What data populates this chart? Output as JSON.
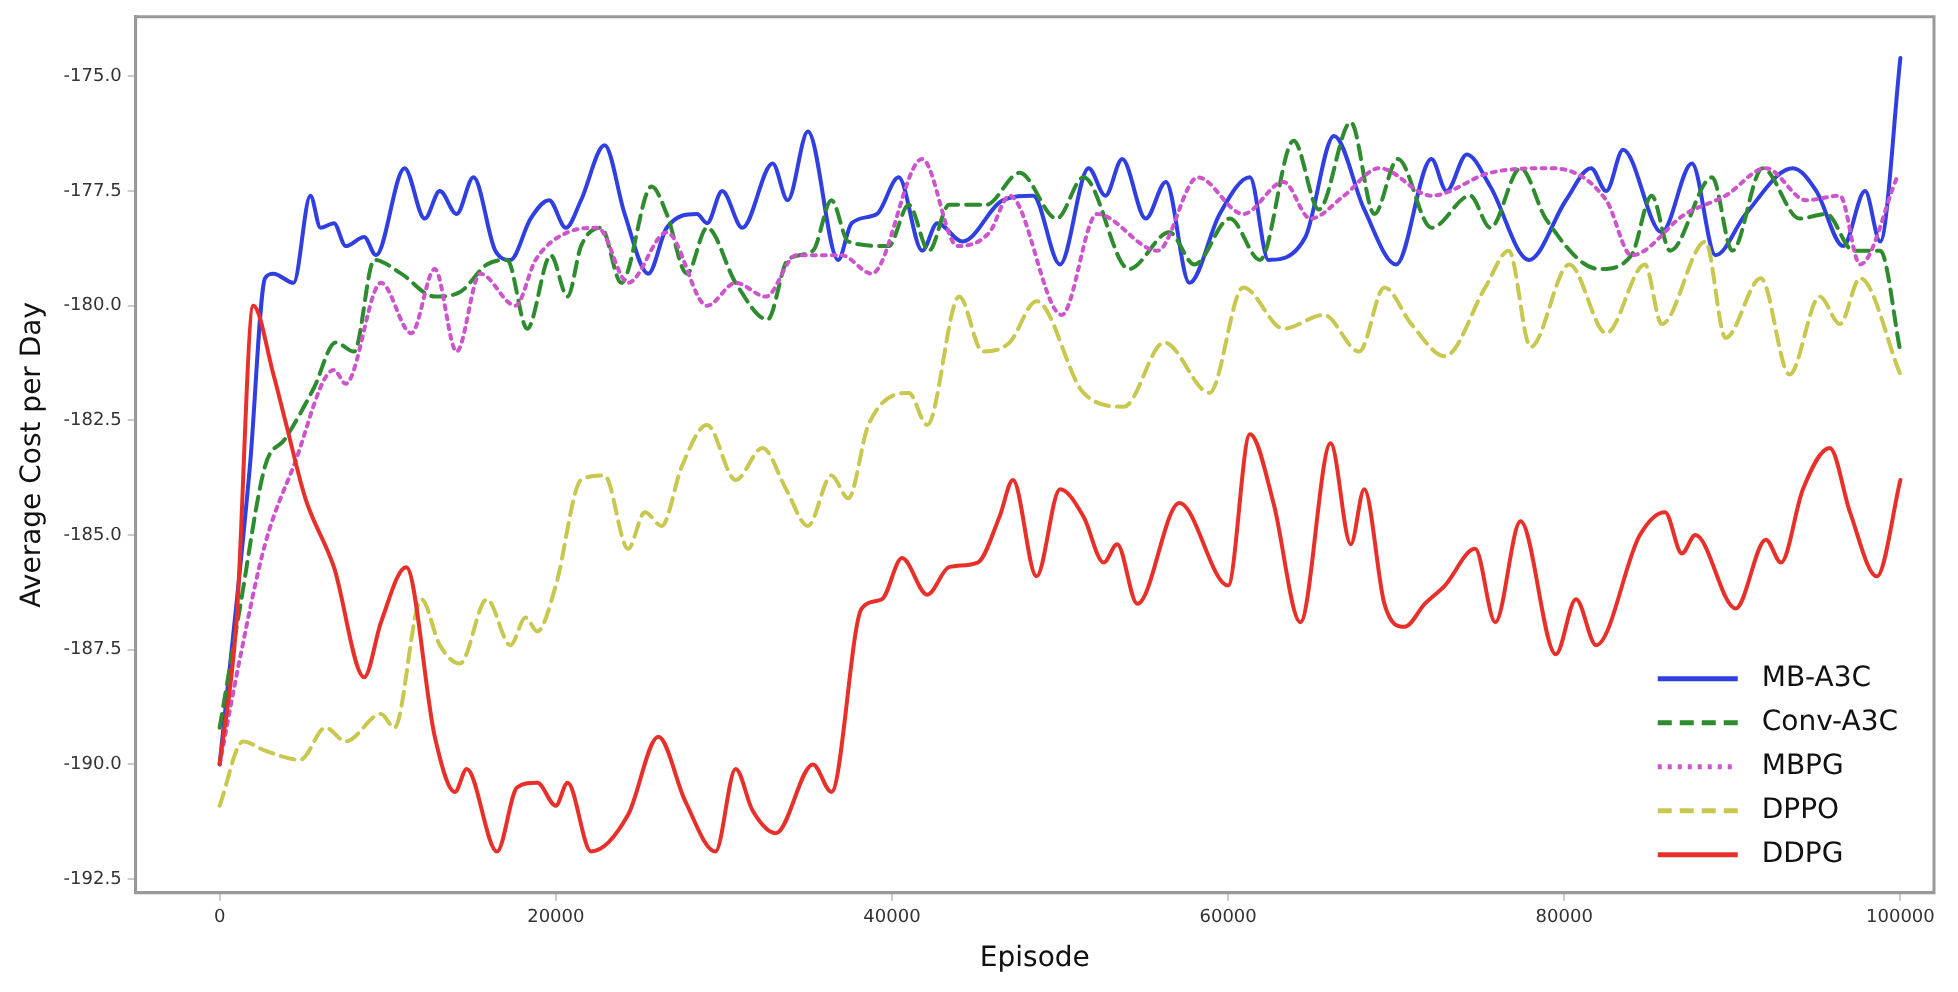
{
  "chart_data": {
    "type": "line",
    "xlabel": "Episode",
    "ylabel": "Average Cost per Day",
    "xlim": [
      -5000,
      102000
    ],
    "ylim": [
      -192.8,
      -173.7
    ],
    "xticks": [
      0,
      20000,
      40000,
      60000,
      80000,
      100000
    ],
    "yticks": [
      {
        "value": -192.5,
        "label": "-192.5"
      },
      {
        "value": -190,
        "label": "-190.0"
      },
      {
        "value": -187.5,
        "label": "-187.5"
      },
      {
        "value": -185,
        "label": "-185.0"
      },
      {
        "value": -182.5,
        "label": "-182.5"
      },
      {
        "value": -180,
        "label": "-180.0"
      },
      {
        "value": -177.5,
        "label": "-177.5"
      },
      {
        "value": -175,
        "label": "-175.0"
      }
    ],
    "grid": false,
    "legend": "bottom right",
    "marker": "none",
    "series": [
      {
        "name": "MB-A3C",
        "color": "#2f3fe0",
        "line_style": "solid",
        "x": [
          0,
          1800,
          2700,
          3200,
          4400,
          5400,
          6000,
          6800,
          7500,
          8600,
          9300,
          11000,
          12200,
          13100,
          14100,
          15100,
          16400,
          17300,
          18500,
          19600,
          20600,
          21500,
          22900,
          24100,
          25500,
          26600,
          28400,
          29000,
          29900,
          31100,
          32900,
          33800,
          35000,
          36800,
          37600,
          39100,
          40400,
          41800,
          42700,
          44200,
          46600,
          48400,
          50000,
          51700,
          52700,
          53700,
          55100,
          56300,
          57700,
          59500,
          61300,
          62400,
          64600,
          66300,
          68100,
          70000,
          72100,
          73000,
          74200,
          75600,
          77900,
          80100,
          81600,
          82500,
          83500,
          85800,
          87600,
          89000,
          90800,
          93600,
          95000,
          96600,
          97900,
          98800,
          100000
        ],
        "values": [
          -190,
          -183.5,
          -179.4,
          -179.3,
          -179.5,
          -177.6,
          -178.3,
          -178.2,
          -178.7,
          -178.5,
          -178.9,
          -177.0,
          -178.1,
          -177.5,
          -178.0,
          -177.2,
          -178.8,
          -179.0,
          -178.1,
          -177.7,
          -178.3,
          -177.7,
          -176.5,
          -178.0,
          -179.3,
          -178.3,
          -178.0,
          -178.2,
          -177.5,
          -178.3,
          -176.9,
          -177.7,
          -176.2,
          -179.0,
          -178.2,
          -178.0,
          -177.2,
          -178.8,
          -178.2,
          -178.6,
          -177.7,
          -177.6,
          -179.1,
          -177.0,
          -177.6,
          -176.8,
          -178.1,
          -177.3,
          -179.5,
          -178.0,
          -177.2,
          -179.0,
          -178.5,
          -176.3,
          -177.9,
          -179.1,
          -176.8,
          -177.5,
          -176.7,
          -177.4,
          -179.0,
          -177.7,
          -177.0,
          -177.5,
          -176.6,
          -178.4,
          -176.9,
          -178.9,
          -178.0,
          -177.0,
          -177.5,
          -178.7,
          -177.5,
          -178.6,
          -174.6
        ]
      },
      {
        "name": "Conv-A3C",
        "color": "#2e8b2e",
        "line_style": "dashed",
        "x": [
          0,
          1200,
          2700,
          3900,
          5600,
          6900,
          8000,
          9200,
          10800,
          12800,
          14300,
          15900,
          17100,
          18300,
          19700,
          20700,
          21500,
          22700,
          23900,
          25700,
          26600,
          27800,
          29000,
          30700,
          32600,
          33800,
          35300,
          36400,
          37400,
          39800,
          41000,
          42200,
          43400,
          45600,
          47600,
          49800,
          51400,
          54100,
          56500,
          58000,
          60100,
          61900,
          63900,
          65400,
          67300,
          68700,
          70100,
          72100,
          74400,
          75600,
          77400,
          78900,
          82100,
          84000,
          85200,
          86300,
          88800,
          90000,
          91800,
          94000,
          95600,
          97200,
          98800,
          100000
        ],
        "values": [
          -189.2,
          -186.6,
          -183.5,
          -182.9,
          -181.8,
          -180.8,
          -181.0,
          -179.0,
          -179.3,
          -179.8,
          -179.7,
          -179.1,
          -179.0,
          -180.5,
          -178.9,
          -179.8,
          -178.7,
          -178.3,
          -179.5,
          -177.4,
          -178.0,
          -179.3,
          -178.3,
          -179.5,
          -180.3,
          -179.0,
          -178.8,
          -177.7,
          -178.6,
          -178.7,
          -177.8,
          -178.8,
          -177.8,
          -177.8,
          -177.1,
          -178.1,
          -177.2,
          -179.2,
          -178.4,
          -179.1,
          -178.1,
          -179.0,
          -176.4,
          -177.9,
          -176.0,
          -178.0,
          -176.8,
          -178.3,
          -177.6,
          -178.3,
          -177.0,
          -178.1,
          -179.2,
          -178.9,
          -177.6,
          -178.8,
          -177.2,
          -178.8,
          -177.0,
          -178.1,
          -178.0,
          -178.8,
          -178.8,
          -181.0
        ]
      },
      {
        "name": "MBPG",
        "color": "#cc55cc",
        "line_style": "dotted",
        "x": [
          0,
          1200,
          2700,
          4400,
          6800,
          7500,
          9600,
          11400,
          12800,
          14100,
          15500,
          17600,
          18800,
          20700,
          22500,
          24300,
          26600,
          29000,
          30700,
          32500,
          34300,
          37000,
          38800,
          41800,
          43900,
          45800,
          47000,
          50100,
          52200,
          55800,
          58200,
          60900,
          63300,
          64900,
          66900,
          69000,
          72100,
          75600,
          79200,
          82500,
          84000,
          87200,
          89600,
          92000,
          94400,
          96400,
          97600,
          99800
        ],
        "values": [
          -190,
          -187.7,
          -185.2,
          -183.5,
          -181.4,
          -181.7,
          -179.5,
          -180.6,
          -179.2,
          -181.0,
          -179.3,
          -180.0,
          -179.0,
          -178.4,
          -178.3,
          -179.5,
          -178.4,
          -180.0,
          -179.5,
          -179.8,
          -178.9,
          -178.9,
          -179.3,
          -176.8,
          -178.7,
          -178.4,
          -177.6,
          -180.2,
          -178.0,
          -178.8,
          -177.2,
          -178.0,
          -177.3,
          -178.1,
          -177.6,
          -177.0,
          -177.6,
          -177.1,
          -177.0,
          -177.7,
          -178.9,
          -178.0,
          -177.6,
          -177.0,
          -177.7,
          -177.6,
          -179.1,
          -177.2
        ]
      },
      {
        "name": "DPPO",
        "color": "#c8c850",
        "line_style": "dashed",
        "x": [
          0,
          1400,
          2700,
          4800,
          6300,
          7500,
          9600,
          10400,
          12000,
          13100,
          14300,
          15900,
          17300,
          18200,
          18900,
          20000,
          21500,
          22900,
          24300,
          25300,
          26300,
          27500,
          29000,
          30700,
          32300,
          33700,
          35000,
          36400,
          37400,
          38600,
          41000,
          42100,
          44000,
          45400,
          47000,
          48600,
          51400,
          53800,
          56200,
          58900,
          60900,
          63300,
          65700,
          67800,
          69300,
          70900,
          72900,
          75300,
          76700,
          78000,
          80300,
          82500,
          84800,
          85800,
          88400,
          89600,
          91700,
          93400,
          95200,
          96400,
          97600,
          100000
        ],
        "values": [
          -190.9,
          -189.5,
          -189.7,
          -189.9,
          -189.2,
          -189.5,
          -188.9,
          -189.2,
          -186.4,
          -187.4,
          -187.8,
          -186.4,
          -187.4,
          -186.8,
          -187.1,
          -186.1,
          -183.8,
          -183.7,
          -185.3,
          -184.5,
          -184.8,
          -183.5,
          -182.6,
          -183.8,
          -183.1,
          -184.0,
          -184.8,
          -183.7,
          -184.2,
          -182.6,
          -181.9,
          -182.6,
          -179.8,
          -181.0,
          -180.8,
          -179.9,
          -181.9,
          -182.2,
          -180.8,
          -181.9,
          -179.6,
          -180.5,
          -180.2,
          -181.0,
          -179.6,
          -180.4,
          -181.1,
          -179.6,
          -178.8,
          -180.9,
          -179.1,
          -180.6,
          -179.1,
          -180.4,
          -178.6,
          -180.7,
          -179.4,
          -181.5,
          -179.8,
          -180.4,
          -179.4,
          -181.5
        ]
      },
      {
        "name": "DDPG",
        "color": "#e8302a",
        "line_style": "solid",
        "x": [
          0,
          1000,
          2000,
          3200,
          3900,
          5100,
          6800,
          8600,
          9600,
          11100,
          12800,
          14000,
          14700,
          16500,
          17700,
          18900,
          20000,
          20700,
          22100,
          24300,
          26100,
          27700,
          29500,
          30700,
          31700,
          33100,
          35300,
          36400,
          38200,
          39400,
          40600,
          42100,
          43400,
          45100,
          46400,
          47200,
          48600,
          50000,
          51400,
          52600,
          53400,
          54600,
          57100,
          60000,
          61300,
          62700,
          64300,
          66100,
          67300,
          68100,
          69300,
          70500,
          71700,
          72900,
          74700,
          75900,
          77400,
          79500,
          80700,
          81900,
          84500,
          86000,
          87000,
          87800,
          90200,
          92000,
          92900,
          94200,
          95800,
          97000,
          98600,
          100000
        ],
        "values": [
          -190,
          -186.9,
          -180.0,
          -181.5,
          -182.5,
          -184.2,
          -185.7,
          -188.1,
          -186.9,
          -185.7,
          -189.4,
          -190.6,
          -190.1,
          -191.9,
          -190.5,
          -190.4,
          -190.9,
          -190.4,
          -191.9,
          -191.1,
          -189.4,
          -190.8,
          -191.9,
          -190.1,
          -191.0,
          -191.5,
          -190.0,
          -190.6,
          -186.6,
          -186.4,
          -185.5,
          -186.3,
          -185.7,
          -185.6,
          -184.6,
          -183.8,
          -185.9,
          -184.0,
          -184.6,
          -185.6,
          -185.2,
          -186.5,
          -184.3,
          -186.1,
          -182.8,
          -184.3,
          -186.9,
          -183.0,
          -185.2,
          -184.0,
          -186.5,
          -187.0,
          -186.5,
          -186.1,
          -185.3,
          -186.9,
          -184.7,
          -187.6,
          -186.4,
          -187.4,
          -185.0,
          -184.5,
          -185.4,
          -185.0,
          -186.6,
          -185.1,
          -185.6,
          -184.0,
          -183.1,
          -184.5,
          -185.9,
          -183.8
        ]
      }
    ]
  }
}
